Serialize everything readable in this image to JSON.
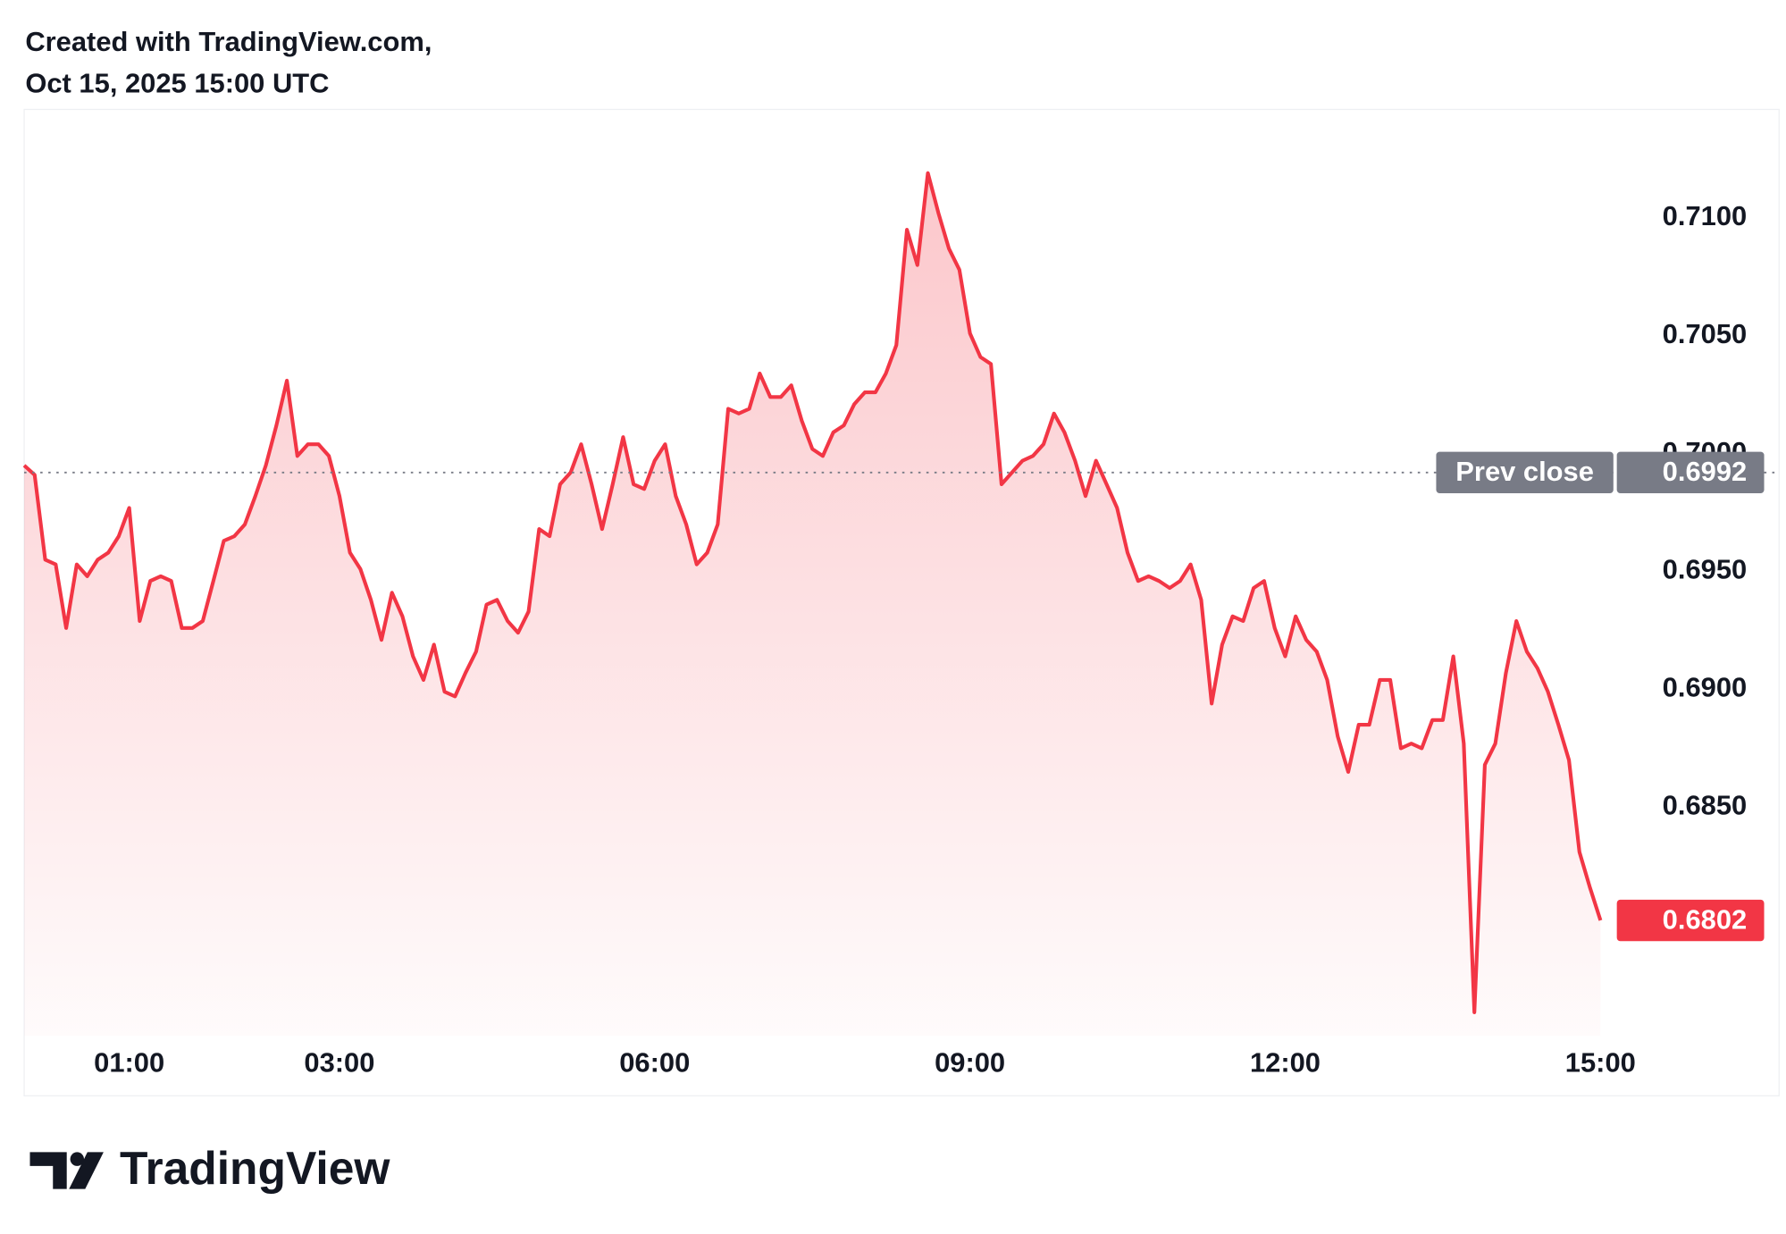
{
  "header": {
    "line1": "Created with TradingView.com,",
    "line2": "Oct 15, 2025 15:00 UTC"
  },
  "brand": "TradingView",
  "chart_data": {
    "type": "area",
    "color": "#f23645",
    "x": [
      0,
      0.1,
      0.2,
      0.3,
      0.4,
      0.5,
      0.6,
      0.7,
      0.8,
      0.9,
      1,
      1.1,
      1.2,
      1.3,
      1.4,
      1.5,
      1.6,
      1.7,
      1.8,
      1.9,
      2,
      2.1,
      2.2,
      2.3,
      2.4,
      2.5,
      2.6,
      2.7,
      2.8,
      2.9,
      3,
      3.1,
      3.2,
      3.3,
      3.4,
      3.5,
      3.6,
      3.7,
      3.8,
      3.9,
      4,
      4.1,
      4.2,
      4.3,
      4.4,
      4.5,
      4.6,
      4.7,
      4.8,
      4.9,
      5,
      5.1,
      5.2,
      5.3,
      5.4,
      5.5,
      5.6,
      5.7,
      5.8,
      5.9,
      6,
      6.1,
      6.2,
      6.3,
      6.4,
      6.5,
      6.6,
      6.7,
      6.8,
      6.9,
      7,
      7.1,
      7.2,
      7.3,
      7.4,
      7.5,
      7.6,
      7.7,
      7.8,
      7.9,
      8,
      8.1,
      8.2,
      8.3,
      8.4,
      8.5,
      8.6,
      8.7,
      8.8,
      8.9,
      9,
      9.1,
      9.2,
      9.3,
      9.4,
      9.5,
      9.6,
      9.7,
      9.8,
      9.9,
      10,
      10.1,
      10.2,
      10.3,
      10.4,
      10.5,
      10.6,
      10.7,
      10.8,
      10.9,
      11,
      11.1,
      11.2,
      11.3,
      11.4,
      11.5,
      11.6,
      11.7,
      11.8,
      11.9,
      12,
      12.1,
      12.2,
      12.3,
      12.4,
      12.5,
      12.6,
      12.7,
      12.8,
      12.9,
      13,
      13.1,
      13.2,
      13.3,
      13.4,
      13.5,
      13.6,
      13.7,
      13.8,
      13.9,
      14,
      14.1,
      14.2,
      14.3,
      14.4,
      14.5,
      14.6,
      14.7,
      14.8,
      14.9,
      15
    ],
    "values": [
      0.6995,
      0.6991,
      0.6955,
      0.6953,
      0.6926,
      0.6953,
      0.6948,
      0.6955,
      0.6958,
      0.6965,
      0.6977,
      0.6929,
      0.6946,
      0.6948,
      0.6946,
      0.6926,
      0.6926,
      0.6929,
      0.6946,
      0.6963,
      0.6965,
      0.697,
      0.6982,
      0.6995,
      0.7012,
      0.7031,
      0.6999,
      0.7004,
      0.7004,
      0.6999,
      0.6982,
      0.6958,
      0.6951,
      0.6938,
      0.6921,
      0.6941,
      0.6931,
      0.6914,
      0.6904,
      0.6919,
      0.6899,
      0.6897,
      0.6907,
      0.6916,
      0.6936,
      0.6938,
      0.6929,
      0.6924,
      0.6933,
      0.6968,
      0.6965,
      0.6987,
      0.6992,
      0.7004,
      0.6987,
      0.6968,
      0.6987,
      0.7007,
      0.6987,
      0.6985,
      0.6997,
      0.7004,
      0.6982,
      0.697,
      0.6953,
      0.6958,
      0.697,
      0.7019,
      0.7017,
      0.7019,
      0.7034,
      0.7024,
      0.7024,
      0.7029,
      0.7014,
      0.7002,
      0.6999,
      0.7009,
      0.7012,
      0.7021,
      0.7026,
      0.7026,
      0.7034,
      0.7046,
      0.7095,
      0.708,
      0.7119,
      0.7102,
      0.7087,
      0.7078,
      0.7051,
      0.7041,
      0.7038,
      0.6987,
      0.6992,
      0.6997,
      0.6999,
      0.7004,
      0.7017,
      0.7009,
      0.6997,
      0.6982,
      0.6997,
      0.6987,
      0.6977,
      0.6958,
      0.6946,
      0.6948,
      0.6946,
      0.6943,
      0.6946,
      0.6953,
      0.6938,
      0.6894,
      0.6919,
      0.6931,
      0.6929,
      0.6943,
      0.6946,
      0.6926,
      0.6914,
      0.6931,
      0.6921,
      0.6916,
      0.6904,
      0.688,
      0.6865,
      0.6885,
      0.6885,
      0.6904,
      0.6904,
      0.6875,
      0.6877,
      0.6875,
      0.6887,
      0.6887,
      0.6914,
      0.6877,
      0.6763,
      0.6868,
      0.6877,
      0.6907,
      0.6929,
      0.6916,
      0.6909,
      0.6899,
      0.6885,
      0.687,
      0.6831,
      0.6816,
      0.6802
    ],
    "xlim": [
      0,
      16.7
    ],
    "xticks": [
      {
        "value": 1,
        "label": "01:00"
      },
      {
        "value": 3,
        "label": "03:00"
      },
      {
        "value": 6,
        "label": "06:00"
      },
      {
        "value": 9,
        "label": "09:00"
      },
      {
        "value": 12,
        "label": "12:00"
      },
      {
        "value": 15,
        "label": "15:00"
      }
    ],
    "ylim": [
      0.6753,
      0.7146
    ],
    "yticks": [
      {
        "value": 0.685,
        "label": "0.6850"
      },
      {
        "value": 0.69,
        "label": "0.6900"
      },
      {
        "value": 0.695,
        "label": "0.6950"
      },
      {
        "value": 0.7,
        "label": "0.7000"
      },
      {
        "value": 0.705,
        "label": "0.7050"
      },
      {
        "value": 0.71,
        "label": "0.7100"
      }
    ],
    "prev_close": {
      "label": "Prev close",
      "value": 0.6992,
      "value_label": "0.6992",
      "color": "#787b86"
    }
  }
}
